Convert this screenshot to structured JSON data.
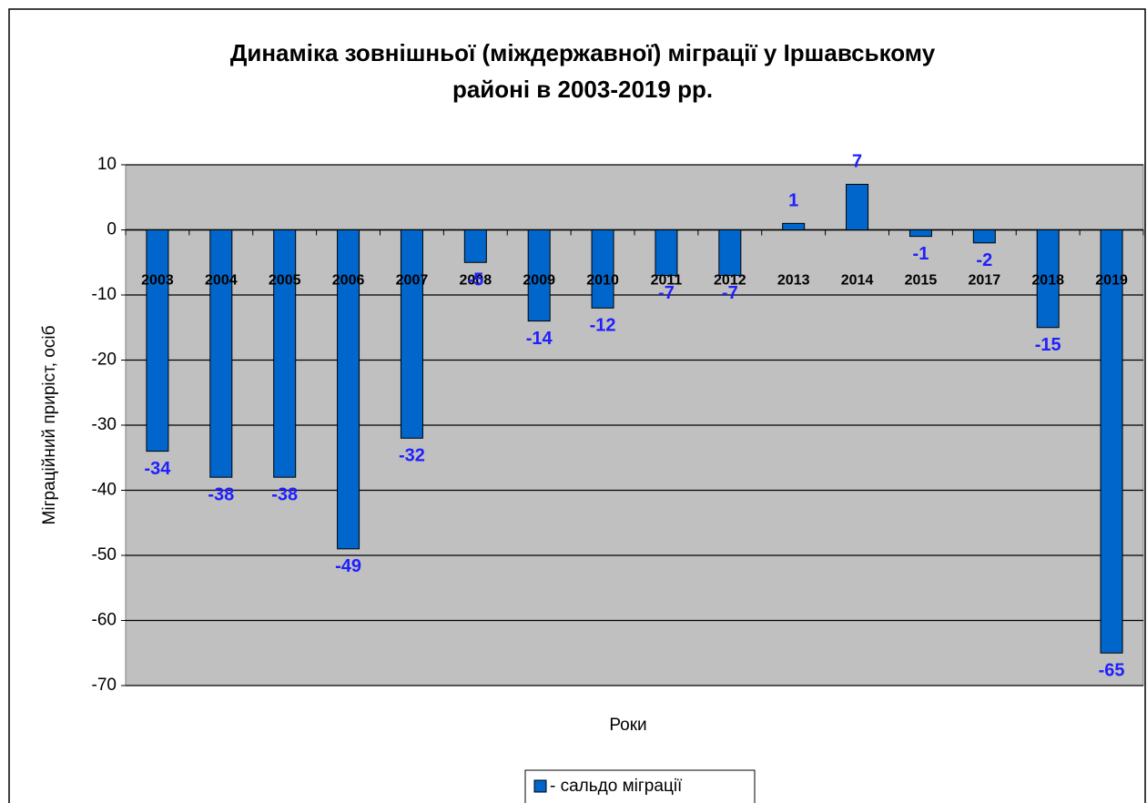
{
  "chart_data": {
    "type": "bar",
    "title": [
      "Динаміка зовнішньої (міждержавної) міграції у Іршавському",
      "районі в 2003-2019 рр."
    ],
    "x_label": "Роки",
    "y_label": "Міграційний приріст, осіб",
    "categories": [
      "2003",
      "2004",
      "2005",
      "2006",
      "2007",
      "2008",
      "2009",
      "2010",
      "2011",
      "2012",
      "2013",
      "2014",
      "2015",
      "2017",
      "2018",
      "2019"
    ],
    "series": [
      {
        "name": "- сальдо міграції",
        "color": "#0066cc",
        "values": [
          -34,
          -38,
          -38,
          -49,
          -32,
          -5,
          -14,
          -12,
          -7,
          -7,
          1,
          7,
          -1,
          -2,
          -15,
          -65
        ]
      }
    ],
    "ylim": [
      -70,
      10
    ],
    "yticks": [
      -70,
      -60,
      -50,
      -40,
      -30,
      -20,
      -10,
      0,
      10
    ],
    "grid": true,
    "legend": "bottom"
  }
}
